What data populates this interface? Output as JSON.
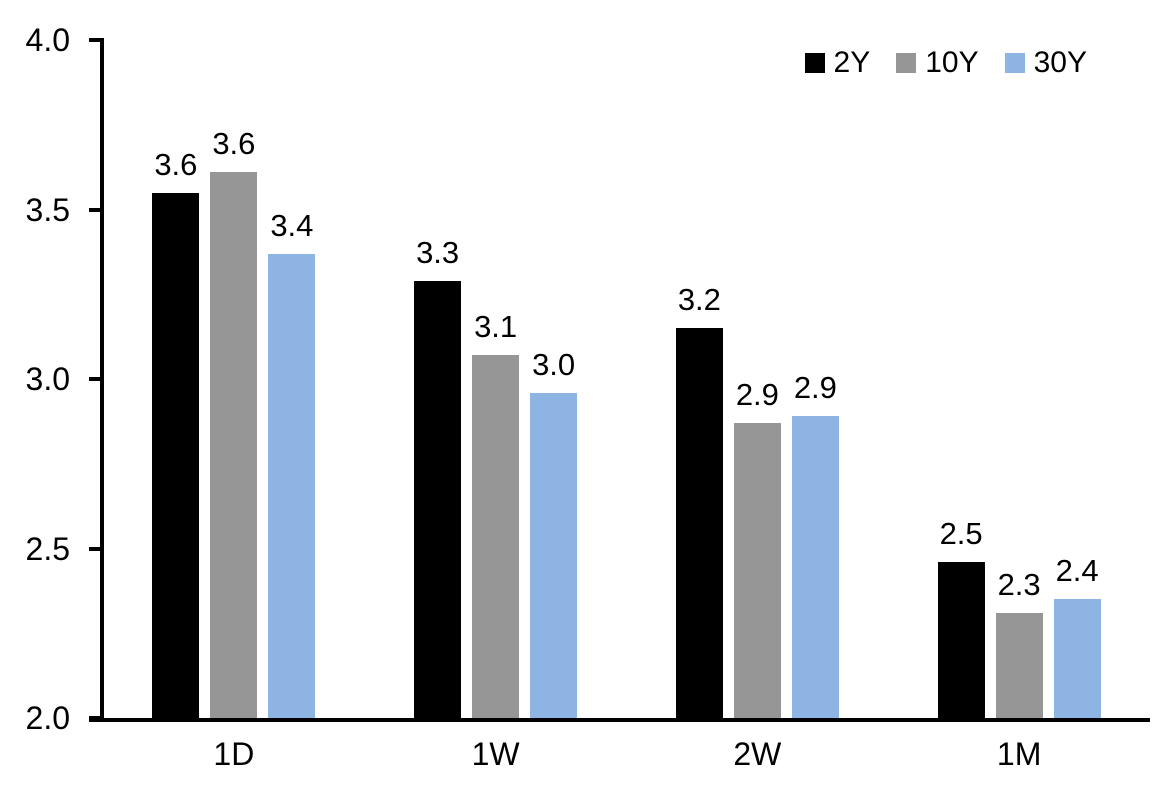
{
  "chart_data": {
    "type": "bar",
    "title": "",
    "categories": [
      "1D",
      "1W",
      "2W",
      "1M"
    ],
    "series": [
      {
        "name": "2Y",
        "color": "#000000",
        "values": [
          3.55,
          3.29,
          3.15,
          2.46
        ],
        "value_labels": [
          "3.6",
          "3.3",
          "3.2",
          "2.5"
        ]
      },
      {
        "name": "10Y",
        "color": "#969696",
        "values": [
          3.61,
          3.07,
          2.87,
          2.31
        ],
        "value_labels": [
          "3.6",
          "3.1",
          "2.9",
          "2.3"
        ]
      },
      {
        "name": "30Y",
        "color": "#8DB4E2",
        "values": [
          3.37,
          2.96,
          2.89,
          2.35
        ],
        "value_labels": [
          "3.4",
          "3.0",
          "2.9",
          "2.4"
        ]
      }
    ],
    "y_axis": {
      "min": 2.0,
      "max": 4.0,
      "tick_step": 0.5,
      "tick_labels": [
        "4.0",
        "3.5",
        "3.0",
        "2.5",
        "2.0"
      ]
    },
    "x_axis": {
      "labels": [
        "1D",
        "1W",
        "2W",
        "1M"
      ]
    },
    "legend": {
      "position": "top-right",
      "entries": [
        {
          "label": "2Y",
          "color": "#000000"
        },
        {
          "label": "10Y",
          "color": "#969696"
        },
        {
          "label": "30Y",
          "color": "#8DB4E2"
        }
      ]
    },
    "grid": false,
    "axis_color": "#000000",
    "background": "#FFFFFF"
  }
}
